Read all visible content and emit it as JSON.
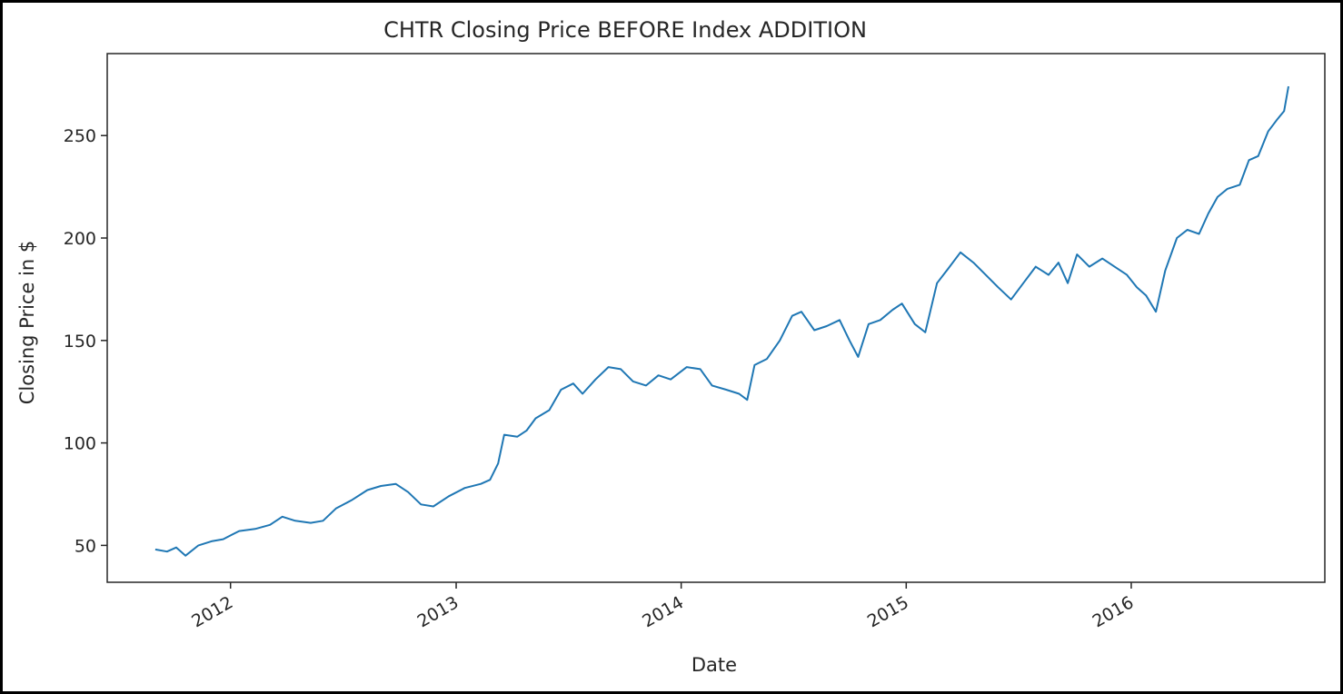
{
  "chart_data": {
    "type": "line",
    "title": "CHTR Closing Price BEFORE Index ADDITION",
    "xlabel": "Date",
    "ylabel": "Closing Price in $",
    "xlim": [
      "2011-06-15",
      "2016-11-10"
    ],
    "ylim": [
      32,
      290
    ],
    "x_ticks": [
      {
        "date": "2012-01-01",
        "label": "2012"
      },
      {
        "date": "2013-01-01",
        "label": "2013"
      },
      {
        "date": "2014-01-01",
        "label": "2014"
      },
      {
        "date": "2015-01-01",
        "label": "2015"
      },
      {
        "date": "2016-01-01",
        "label": "2016"
      }
    ],
    "y_ticks": [
      50,
      100,
      150,
      200,
      250
    ],
    "grid": false,
    "line_color": "#1f77b4",
    "series": [
      {
        "x": [
          "2011-09-01",
          "2011-09-20",
          "2011-10-05",
          "2011-10-20",
          "2011-11-10",
          "2011-12-01",
          "2011-12-20",
          "2012-01-15",
          "2012-02-10",
          "2012-03-05",
          "2012-03-25",
          "2012-04-15",
          "2012-05-10",
          "2012-05-30",
          "2012-06-20",
          "2012-07-15",
          "2012-08-10",
          "2012-09-01",
          "2012-09-25",
          "2012-10-15",
          "2012-11-05",
          "2012-11-25",
          "2012-12-20",
          "2013-01-15",
          "2013-02-10",
          "2013-02-25",
          "2013-03-10",
          "2013-03-20",
          "2013-04-10",
          "2013-04-25",
          "2013-05-10",
          "2013-06-01",
          "2013-06-20",
          "2013-07-10",
          "2013-07-25",
          "2013-08-15",
          "2013-09-05",
          "2013-09-25",
          "2013-10-15",
          "2013-11-05",
          "2013-11-25",
          "2013-12-15",
          "2014-01-10",
          "2014-02-01",
          "2014-02-20",
          "2014-03-15",
          "2014-04-05",
          "2014-04-18",
          "2014-04-30",
          "2014-05-20",
          "2014-06-10",
          "2014-06-30",
          "2014-07-15",
          "2014-08-05",
          "2014-08-25",
          "2014-09-15",
          "2014-10-01",
          "2014-10-15",
          "2014-11-01",
          "2014-11-20",
          "2014-12-10",
          "2014-12-25",
          "2015-01-15",
          "2015-02-01",
          "2015-02-20",
          "2015-03-10",
          "2015-03-30",
          "2015-04-20",
          "2015-05-10",
          "2015-05-30",
          "2015-06-20",
          "2015-07-10",
          "2015-07-30",
          "2015-08-20",
          "2015-09-05",
          "2015-09-20",
          "2015-10-05",
          "2015-10-25",
          "2015-11-15",
          "2015-12-05",
          "2015-12-25",
          "2016-01-10",
          "2016-01-25",
          "2016-02-10",
          "2016-02-25",
          "2016-03-15",
          "2016-04-01",
          "2016-04-20",
          "2016-05-05",
          "2016-05-20",
          "2016-06-05",
          "2016-06-25",
          "2016-07-10",
          "2016-07-25",
          "2016-08-10",
          "2016-08-25",
          "2016-09-05",
          "2016-09-12"
        ],
        "values": [
          48,
          47,
          49,
          45,
          50,
          52,
          53,
          57,
          58,
          60,
          64,
          62,
          61,
          62,
          68,
          72,
          77,
          79,
          80,
          76,
          70,
          69,
          74,
          78,
          80,
          82,
          90,
          104,
          103,
          106,
          112,
          116,
          126,
          129,
          124,
          131,
          137,
          136,
          130,
          128,
          133,
          131,
          137,
          136,
          128,
          126,
          124,
          121,
          138,
          141,
          150,
          162,
          164,
          155,
          157,
          160,
          150,
          142,
          158,
          160,
          165,
          168,
          158,
          154,
          178,
          185,
          193,
          188,
          182,
          176,
          170,
          178,
          186,
          182,
          188,
          178,
          192,
          186,
          190,
          186,
          182,
          176,
          172,
          164,
          184,
          200,
          204,
          202,
          212,
          220,
          224,
          226,
          238,
          240,
          252,
          258,
          262,
          274
        ]
      }
    ]
  }
}
